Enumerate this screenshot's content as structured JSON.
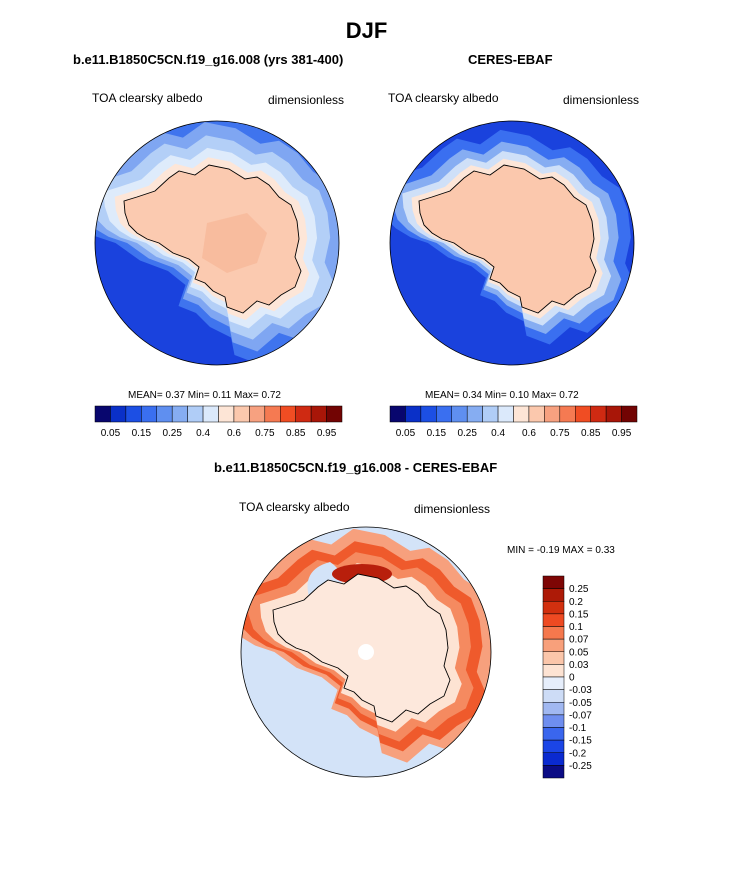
{
  "page_title": "DJF",
  "panels": {
    "model": {
      "title": "b.e11.B1850C5CN.f19_g16.008 (yrs 381-400)",
      "left_label": "TOA clearsky albedo",
      "right_label": "dimensionless",
      "stats": {
        "mean_label": "MEAN=",
        "mean": "0.37",
        "min_label": "Min=",
        "min": "0.11",
        "max_label": "Max=",
        "max": "0.72"
      }
    },
    "obs": {
      "title": "CERES-EBAF",
      "left_label": "TOA clearsky albedo",
      "right_label": "dimensionless",
      "stats": {
        "mean_label": "MEAN=",
        "mean": "0.34",
        "min_label": "Min=",
        "min": "0.10",
        "max_label": "Max=",
        "max": "0.72"
      }
    },
    "diff": {
      "title": "b.e11.B1850C5CN.f19_g16.008 - CERES-EBAF",
      "left_label": "TOA clearsky albedo",
      "right_label": "dimensionless",
      "minmax": "MIN =  -0.19 MAX =   0.33"
    }
  },
  "colors": {
    "abs_palette": [
      "#08066e",
      "#0a30c8",
      "#1c4fe4",
      "#3a6ff0",
      "#5f8ff0",
      "#86adf2",
      "#b0cdf7",
      "#dbe9fb",
      "#fde5d6",
      "#fbc8ad",
      "#f7a180",
      "#f57a52",
      "#f04d23",
      "#cf2a12",
      "#a81608",
      "#720403"
    ],
    "diff_palette": [
      "#0b0c85",
      "#0a2ad0",
      "#1b45e6",
      "#3a66ee",
      "#6f8eef",
      "#a1b8f1",
      "#cddcf6",
      "#e6eefb",
      "#fde3d3",
      "#fbc6aa",
      "#f8a07b",
      "#f5784d",
      "#ee4a22",
      "#d2300f",
      "#ad1a07",
      "#7e0605"
    ]
  },
  "chart_data": [
    {
      "type": "heatmap",
      "name": "model",
      "projection": "south polar stereographic",
      "colorbar": {
        "orientation": "horizontal",
        "levels": [
          0.05,
          0.1,
          0.15,
          0.2,
          0.25,
          0.3,
          0.4,
          0.5,
          0.6,
          0.7,
          0.75,
          0.8,
          0.85,
          0.9,
          0.95
        ],
        "tick_labels": [
          "0.05",
          "0.15",
          "0.25",
          "0.4",
          "0.6",
          "0.75",
          "0.85",
          "0.95"
        ]
      },
      "mean": 0.37,
      "min": 0.11,
      "max": 0.72
    },
    {
      "type": "heatmap",
      "name": "obs",
      "projection": "south polar stereographic",
      "colorbar": {
        "orientation": "horizontal",
        "levels": [
          0.05,
          0.1,
          0.15,
          0.2,
          0.25,
          0.3,
          0.4,
          0.5,
          0.6,
          0.7,
          0.75,
          0.8,
          0.85,
          0.9,
          0.95
        ],
        "tick_labels": [
          "0.05",
          "0.15",
          "0.25",
          "0.4",
          "0.6",
          "0.75",
          "0.85",
          "0.95"
        ]
      },
      "mean": 0.34,
      "min": 0.1,
      "max": 0.72
    },
    {
      "type": "heatmap",
      "name": "difference",
      "projection": "south polar stereographic",
      "colorbar": {
        "orientation": "vertical",
        "tick_labels": [
          "0.25",
          "0.2",
          "0.15",
          "0.1",
          "0.07",
          "0.05",
          "0.03",
          "0",
          "-0.03",
          "-0.05",
          "-0.07",
          "-0.1",
          "-0.15",
          "-0.2",
          "-0.25"
        ]
      },
      "min": -0.19,
      "max": 0.33
    }
  ]
}
